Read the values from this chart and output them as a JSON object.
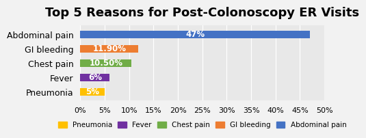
{
  "title": "Top 5 Reasons for Post-Colonoscopy ER Visits",
  "categories": [
    "Abdominal pain",
    "GI bleeding",
    "Chest pain",
    "Fever",
    "Pneumonia"
  ],
  "values": [
    47,
    11.9,
    10.5,
    6,
    5
  ],
  "colors": [
    "#4472C4",
    "#ED7D31",
    "#70AD47",
    "#7030A0",
    "#FFC000"
  ],
  "labels": [
    "47%",
    "11.90%",
    "10.50%",
    "6%",
    "5%"
  ],
  "xlim": [
    0,
    50
  ],
  "xticks": [
    0,
    5,
    10,
    15,
    20,
    25,
    30,
    35,
    40,
    45,
    50
  ],
  "xtick_labels": [
    "0%",
    "5%",
    "10%",
    "15%",
    "20%",
    "25%",
    "30%",
    "35%",
    "40%",
    "45%",
    "50%"
  ],
  "legend_labels": [
    "Pneumonia",
    "Fever",
    "Chest pain",
    "GI bleeding",
    "Abdominal pain"
  ],
  "legend_colors": [
    "#FFC000",
    "#7030A0",
    "#70AD47",
    "#ED7D31",
    "#4472C4"
  ],
  "fig_bg_color": "#F2F2F2",
  "ax_bg_color": "#E8E8E8",
  "title_fontsize": 13,
  "label_fontsize": 8.5,
  "bar_height": 0.52
}
